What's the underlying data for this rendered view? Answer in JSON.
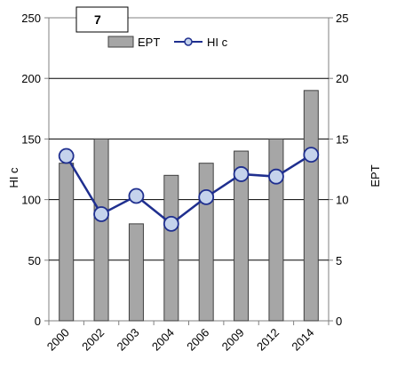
{
  "panel_label": "7",
  "legend": {
    "bar_label": "EPT",
    "line_label": "HI c"
  },
  "colors": {
    "bar_fill": "#a6a6a6",
    "bar_stroke": "#404040",
    "line": "#1f2f8f",
    "marker_fill": "#c5d3ec",
    "grid": "#000000",
    "axis": "#808080"
  },
  "chart_data": {
    "type": "bar",
    "categories": [
      "2000",
      "2002",
      "2003",
      "2004",
      "2006",
      "2009",
      "2012",
      "2014"
    ],
    "series": [
      {
        "name": "EPT",
        "type": "bar",
        "axis": "right",
        "values": [
          13,
          15,
          8,
          12,
          13,
          14,
          15,
          19
        ]
      },
      {
        "name": "HI c",
        "type": "line",
        "axis": "left",
        "values": [
          136,
          88,
          103,
          80,
          102,
          121,
          119,
          137
        ]
      }
    ],
    "ylabel_left": "HI c",
    "ylabel_right": "EPT",
    "ylim_left": [
      0,
      250
    ],
    "ylim_right": [
      0,
      25
    ],
    "yticks_left": [
      0,
      50,
      100,
      150,
      200,
      250
    ],
    "yticks_right": [
      0,
      5,
      10,
      15,
      20,
      25
    ],
    "grid": true,
    "legend_position": "top"
  }
}
